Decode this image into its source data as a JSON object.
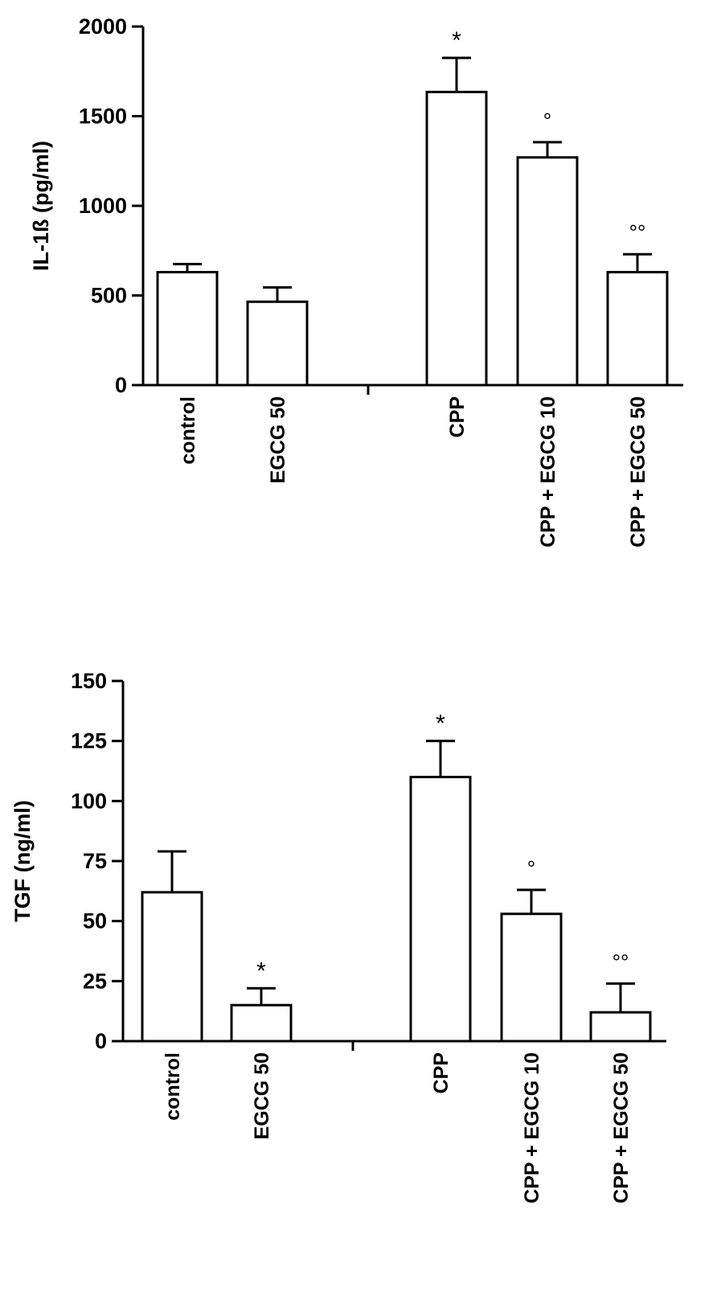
{
  "chart_data": [
    {
      "type": "bar",
      "ylabel": "IL-1ß (pg/ml)",
      "xlabel": "",
      "ylim": [
        0,
        2000
      ],
      "yticks": [
        0,
        500,
        1000,
        1500,
        2000
      ],
      "ytick_labels": [
        "0",
        "500",
        "1000",
        "1500",
        "2000"
      ],
      "grid": false,
      "legend": "none",
      "categories": [
        "control",
        "EGCG 50",
        "CPP",
        "CPP + EGCG 10",
        "CPP + EGCG 50"
      ],
      "values": [
        630,
        465,
        1635,
        1270,
        630
      ],
      "errors": [
        45,
        80,
        190,
        85,
        100
      ],
      "annotations": [
        "",
        "",
        "*",
        "°",
        "°°"
      ]
    },
    {
      "type": "bar",
      "ylabel": "TGF (ng/ml)",
      "xlabel": "",
      "ylim": [
        0,
        150
      ],
      "yticks": [
        0,
        25,
        50,
        75,
        100,
        125,
        150
      ],
      "ytick_labels": [
        "0",
        "25",
        "50",
        "75",
        "100",
        "125",
        "150"
      ],
      "grid": false,
      "legend": "none",
      "categories": [
        "control",
        "EGCG 50",
        "CPP",
        "CPP + EGCG 10",
        "CPP + EGCG 50"
      ],
      "values": [
        62,
        15,
        110,
        53,
        12
      ],
      "errors": [
        17,
        7,
        15,
        10,
        12
      ],
      "annotations": [
        "",
        "*",
        "*",
        "°",
        "°°"
      ]
    }
  ]
}
